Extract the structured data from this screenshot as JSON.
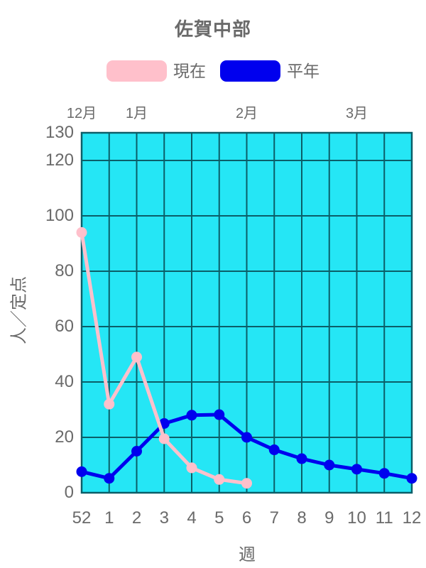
{
  "page": {
    "background_color": "#FFFFFF",
    "text_color": "#6A6A6A"
  },
  "title": "佐賀中部",
  "legend": {
    "items": [
      {
        "id": "current",
        "label": "現在",
        "color": "#FFC0CB"
      },
      {
        "id": "normal",
        "label": "平年",
        "color": "#0000EE"
      }
    ]
  },
  "chart_data": {
    "type": "line",
    "title": "佐賀中部",
    "xlabel": "週",
    "ylabel": "人／定点",
    "x_tick_labels": [
      "52",
      "1",
      "2",
      "3",
      "4",
      "5",
      "6",
      "7",
      "8",
      "9",
      "10",
      "11",
      "12"
    ],
    "month_labels": [
      {
        "label": "12月",
        "week_index": 0
      },
      {
        "label": "1月",
        "week_index": 2
      },
      {
        "label": "2月",
        "week_index": 6
      },
      {
        "label": "3月",
        "week_index": 10
      }
    ],
    "y_ticks": [
      0,
      20,
      40,
      60,
      80,
      100,
      120,
      130
    ],
    "ylim": [
      0,
      130
    ],
    "grid": true,
    "legend_position": "top",
    "plot_bg_color": "#25E6F5",
    "grid_color": "#0B5E68",
    "series": [
      {
        "id": "current",
        "name": "現在",
        "color": "#FFC0CB",
        "values": [
          94,
          32,
          49,
          19.5,
          9,
          4.8,
          3.4
        ]
      },
      {
        "id": "normal",
        "name": "平年",
        "color": "#0000EE",
        "values": [
          7.6,
          5.2,
          15,
          25,
          28,
          28.2,
          20,
          15.5,
          12.3,
          10,
          8.5,
          7,
          5.2
        ]
      }
    ]
  }
}
